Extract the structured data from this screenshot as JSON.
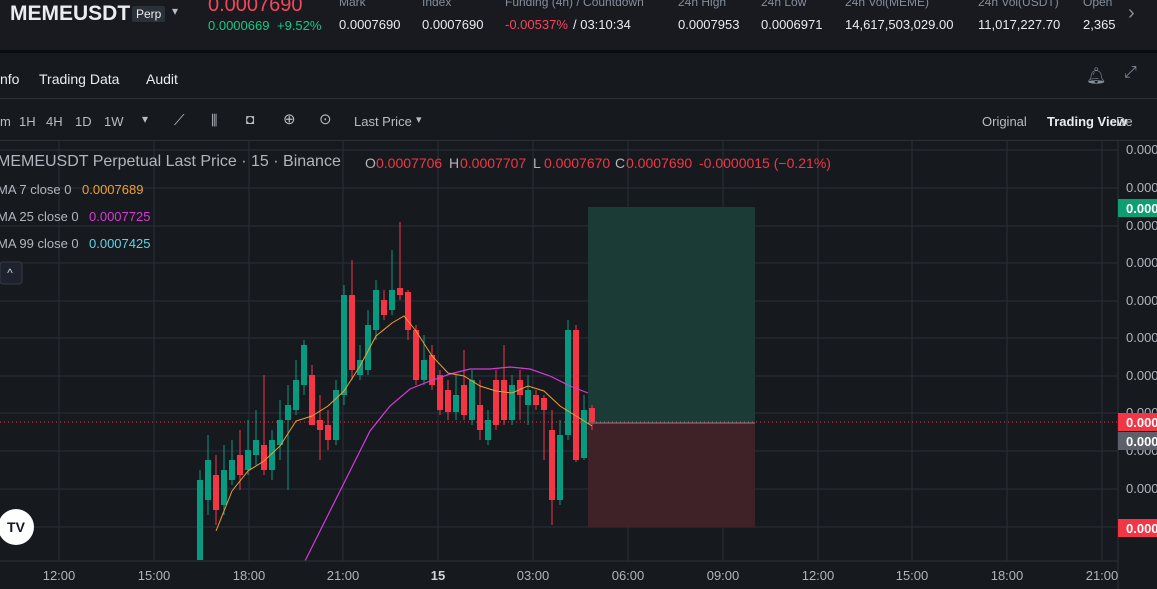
{
  "header": {
    "symbol": "MEMEUSDT",
    "badge": "Perp",
    "price": "0.0007690",
    "change": "0.0000669",
    "change_pct": "+9.52%",
    "stats": [
      {
        "label": "Mark",
        "value": "0.0007690"
      },
      {
        "label": "Index",
        "value": "0.0007690"
      },
      {
        "label": "Funding (4h) / Countdown",
        "value": "-0.00537%",
        "extra": "/ 03:10:34"
      },
      {
        "label": "24h High",
        "value": "0.0007953"
      },
      {
        "label": "24h Low",
        "value": "0.0006971"
      },
      {
        "label": "24h Vol(MEME)",
        "value": "14,617,503,029.00"
      },
      {
        "label": "24h Vol(USDT)",
        "value": "11,017,227.70"
      },
      {
        "label": "Open",
        "value": "2,365"
      }
    ]
  },
  "tabs": [
    "nfo",
    "Trading Data",
    "Audit"
  ],
  "toolbar": {
    "intervals": [
      "m",
      "1H",
      "4H",
      "1D",
      "1W"
    ],
    "price_type": "Last Price",
    "views": [
      "Original",
      "Trading View",
      "De"
    ]
  },
  "chart": {
    "legend_title": "MEMEUSDT Perpetual Last Price · 15 · Binance",
    "ohlc": [
      {
        "label": "O",
        "value": "0.0007706"
      },
      {
        "label": "H",
        "value": "0.0007707"
      },
      {
        "label": "L",
        "value": "0.0007670"
      },
      {
        "label": "C",
        "value": "0.0007690"
      }
    ],
    "change": "-0.0000015 (−0.21%)",
    "ma": [
      {
        "label": "MA 7 close 0",
        "value": "0.0007689",
        "color": "#f0a030"
      },
      {
        "label": "MA 25 close 0",
        "value": "0.0007725",
        "color": "#d63ad6"
      },
      {
        "label": "MA 99 close 0",
        "value": "0.0007425",
        "color": "#5fd3e6"
      }
    ],
    "price_labels": [
      "0.000",
      "0.000",
      "0.000",
      "0.000",
      "0.000",
      "0.000",
      "0.000",
      "0.000",
      "0.000",
      "0.000"
    ],
    "badges": [
      {
        "text": "0.000",
        "color": "#0e9e72"
      },
      {
        "text": "0.000",
        "color": "#f23645"
      },
      {
        "text": "0.000",
        "color": "#5d606b"
      },
      {
        "text": "0.000",
        "color": "#f23645"
      }
    ],
    "time_labels": [
      "12:00",
      "15:00",
      "18:00",
      "21:00",
      "15",
      "03:00",
      "06:00",
      "09:00",
      "12:00",
      "15:00",
      "18:00",
      "21:00"
    ]
  }
}
